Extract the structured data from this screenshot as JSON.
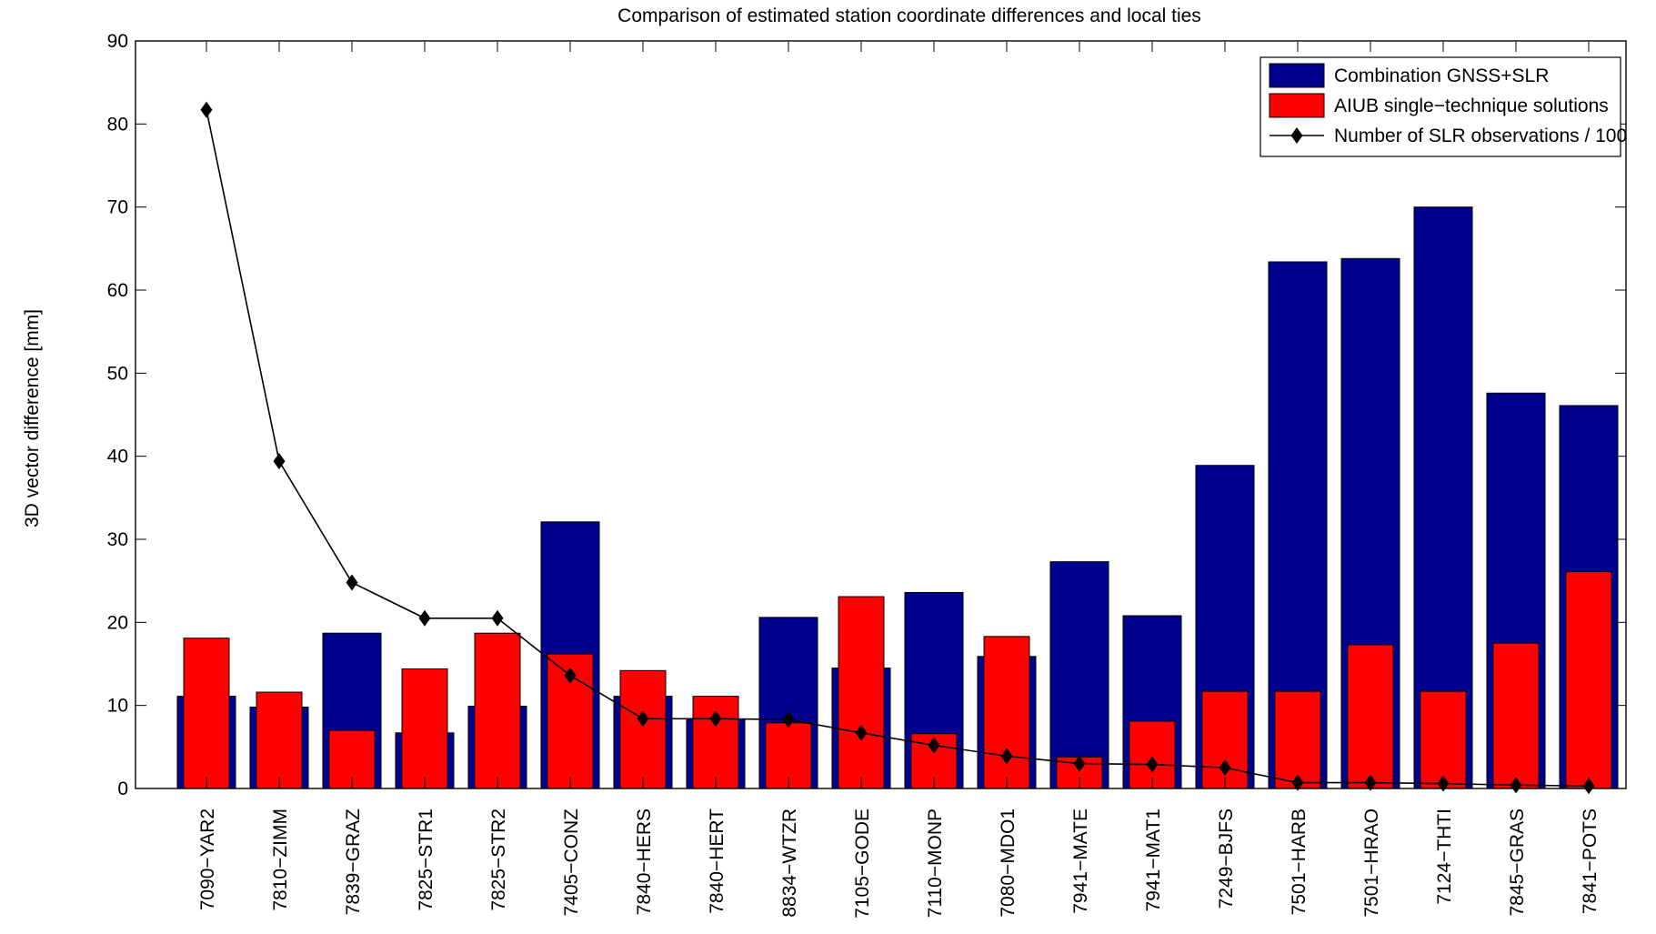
{
  "chart_data": {
    "type": "bar",
    "title": "Comparison of estimated station coordinate differences and local ties",
    "xlabel": "",
    "ylabel": "3D vector difference [mm]",
    "ylim": [
      0,
      90
    ],
    "yticks": [
      0,
      10,
      20,
      30,
      40,
      50,
      60,
      70,
      80,
      90
    ],
    "grid": false,
    "legend_position": "top-right",
    "categories": [
      "7090−YAR2",
      "7810−ZIMM",
      "7839−GRAZ",
      "7825−STR1",
      "7825−STR2",
      "7405−CONZ",
      "7840−HERS",
      "7840−HERT",
      "8834−WTZR",
      "7105−GODE",
      "7110−MONP",
      "7080−MDO1",
      "7941−MATE",
      "7941−MAT1",
      "7249−BJFS",
      "7501−HARB",
      "7501−HRAO",
      "7124−THTI",
      "7845−GRAS",
      "7841−POTS"
    ],
    "series": [
      {
        "name": "Combination GNSS+SLR",
        "kind": "bar",
        "color": "#00008f",
        "values": [
          11.1,
          9.8,
          18.7,
          6.7,
          9.9,
          32.1,
          11.1,
          8.3,
          20.6,
          14.5,
          23.6,
          15.9,
          27.3,
          20.8,
          38.9,
          63.4,
          63.8,
          70.0,
          47.6,
          46.1
        ]
      },
      {
        "name": "AIUB single−technique solutions",
        "kind": "bar",
        "color": "#ff0000",
        "values": [
          18.1,
          11.6,
          7.0,
          14.4,
          18.7,
          16.2,
          14.2,
          11.1,
          7.9,
          23.1,
          6.6,
          18.3,
          3.8,
          8.1,
          11.7,
          11.7,
          17.3,
          11.7,
          17.5,
          26.1
        ]
      },
      {
        "name": "Number of SLR observations / 100",
        "kind": "line",
        "color": "#000000",
        "values": [
          81.7,
          39.4,
          24.8,
          20.5,
          20.5,
          13.6,
          8.4,
          8.4,
          8.3,
          6.7,
          5.2,
          3.9,
          3.0,
          2.9,
          2.5,
          0.7,
          0.7,
          0.6,
          0.4,
          0.3
        ]
      }
    ]
  }
}
